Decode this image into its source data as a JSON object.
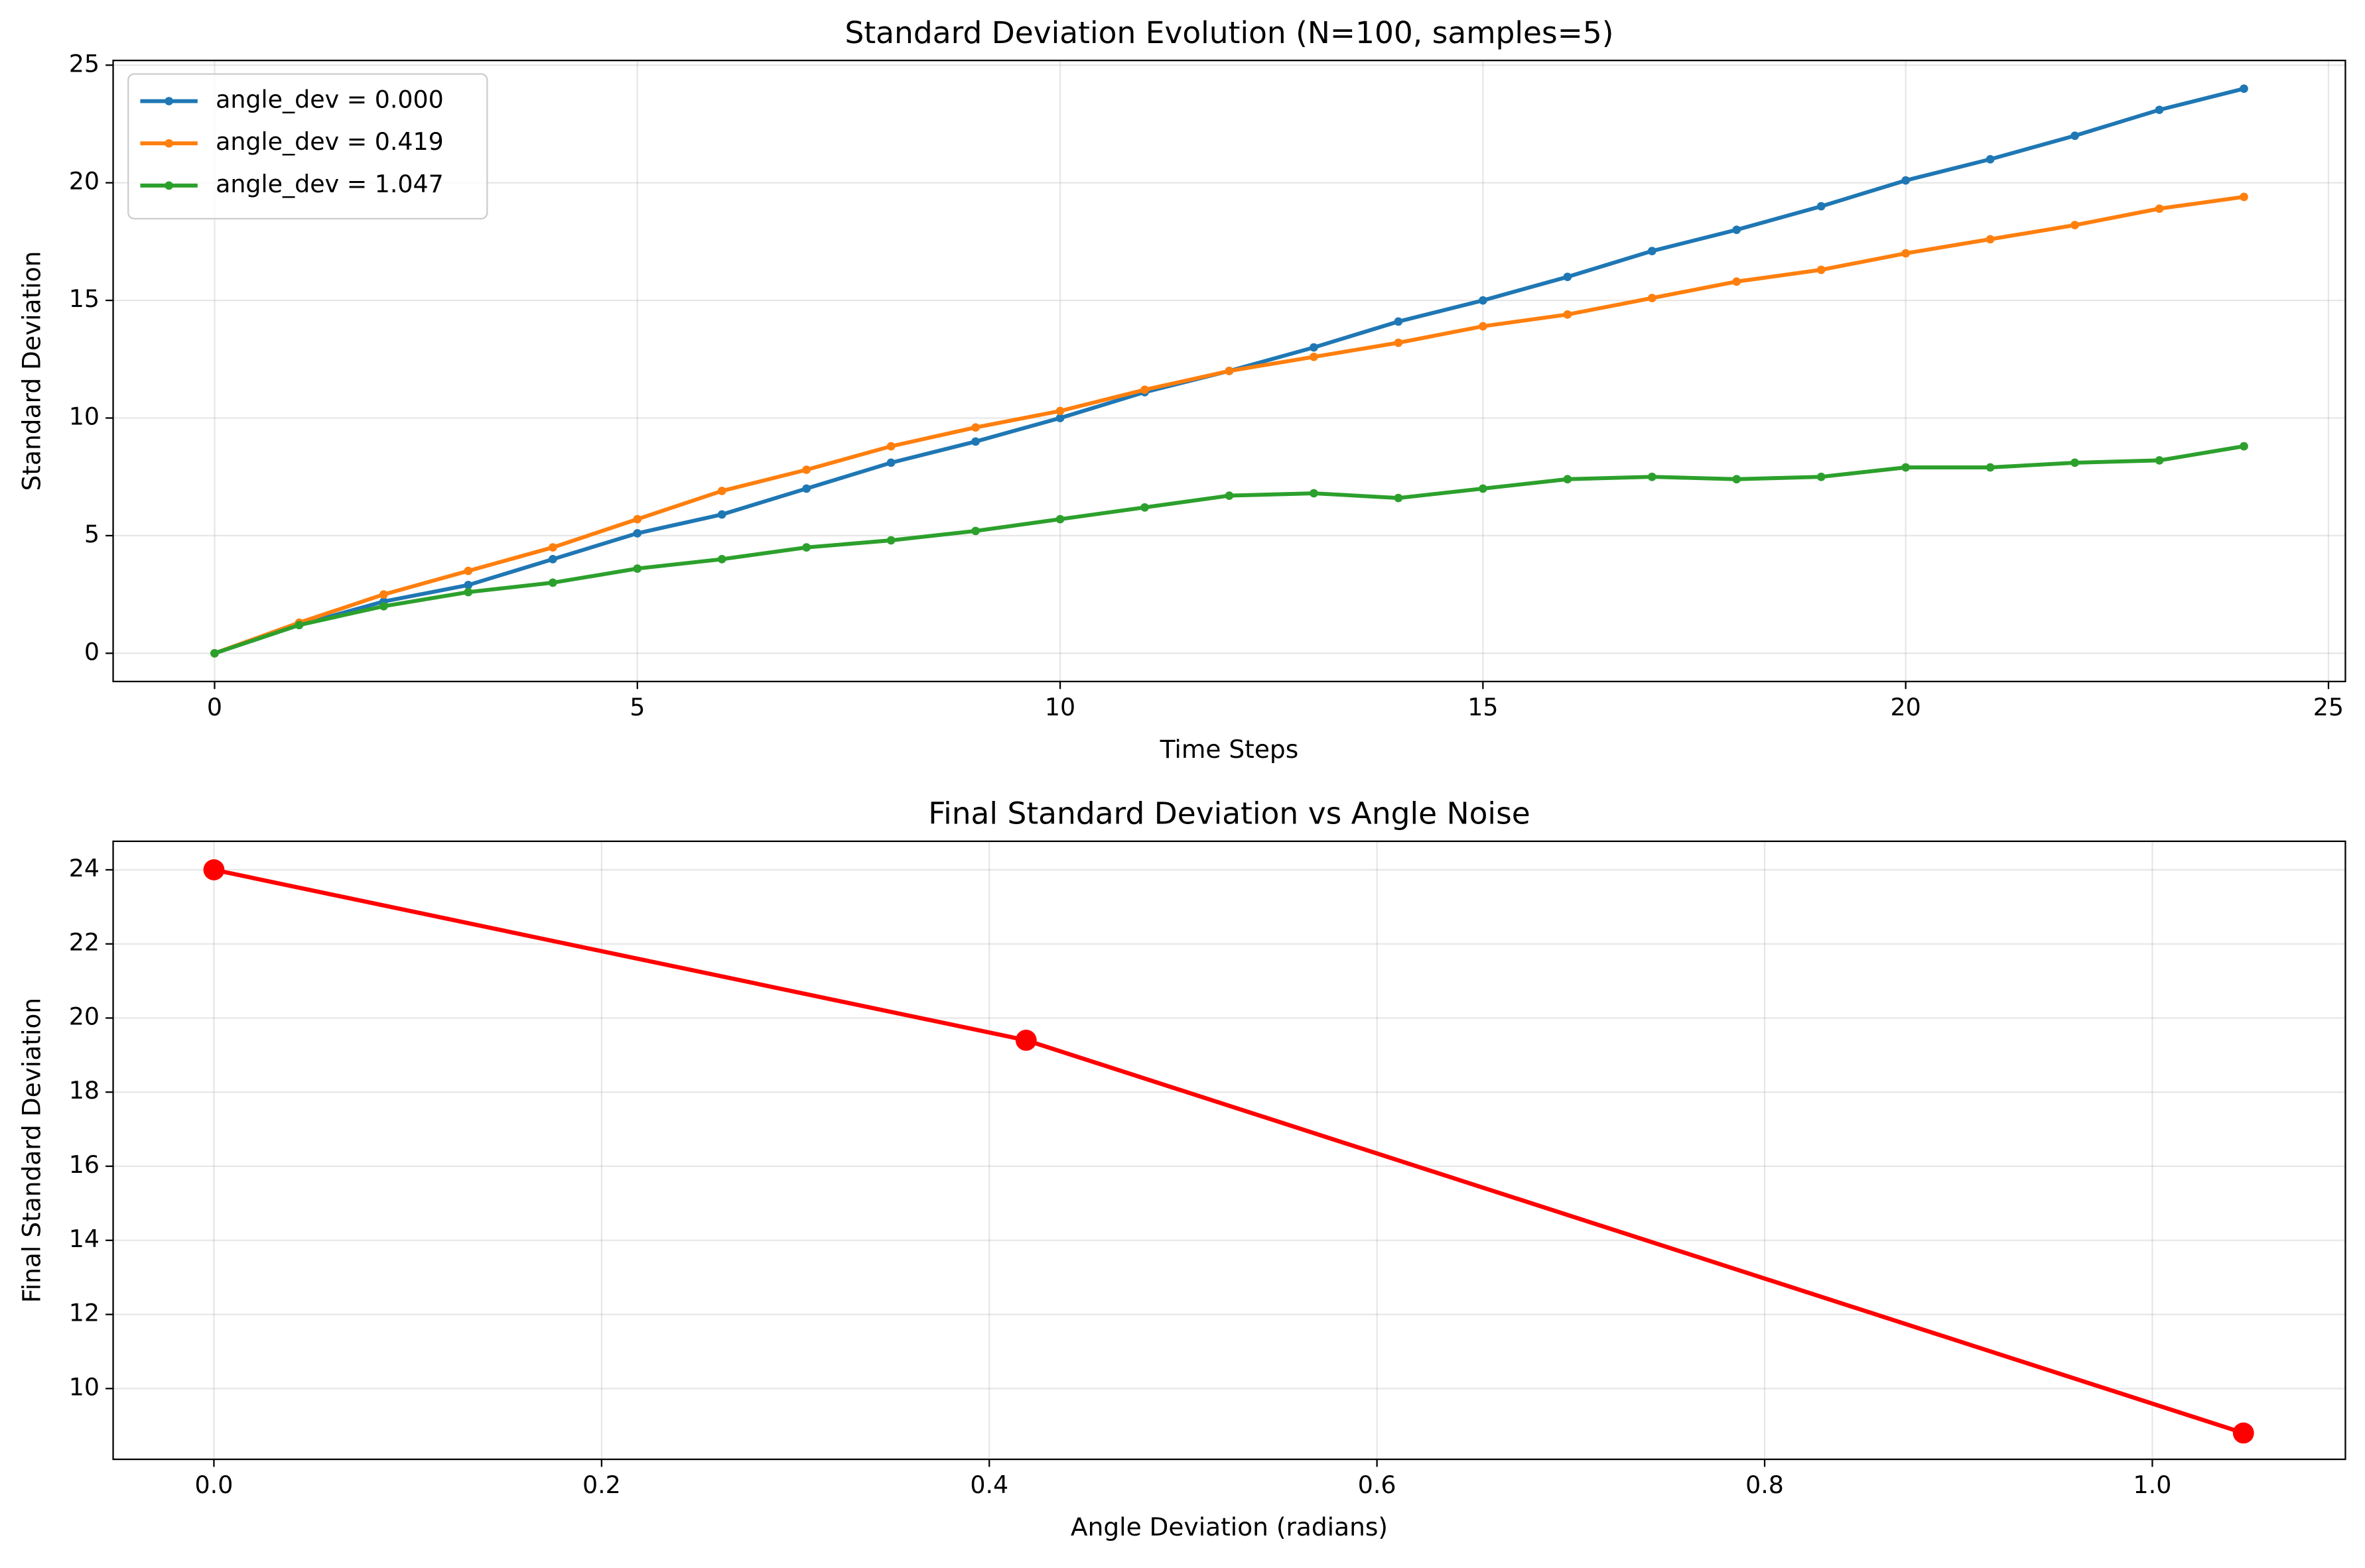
{
  "chart_data": [
    {
      "type": "line",
      "title": "Standard Deviation Evolution (N=100, samples=5)",
      "x_label": "Time Steps",
      "y_label": "Standard Deviation",
      "x": [
        0,
        1,
        2,
        3,
        4,
        5,
        6,
        7,
        8,
        9,
        10,
        11,
        12,
        13,
        14,
        15,
        16,
        17,
        18,
        19,
        20,
        21,
        22,
        23,
        24
      ],
      "series": [
        {
          "name": "angle_dev = 0.000",
          "color": "#1f77b4",
          "values": [
            0,
            1.2,
            2.2,
            2.9,
            4.0,
            5.1,
            5.9,
            7.0,
            8.1,
            9.0,
            10.0,
            11.1,
            12.0,
            13.0,
            14.1,
            15.0,
            16.0,
            17.1,
            18.0,
            19.0,
            20.1,
            21.0,
            22.0,
            23.1,
            24.0
          ]
        },
        {
          "name": "angle_dev = 0.419",
          "color": "#ff7f0e",
          "values": [
            0,
            1.3,
            2.5,
            3.5,
            4.5,
            5.7,
            6.9,
            7.8,
            8.8,
            9.6,
            10.3,
            11.2,
            12.0,
            12.6,
            13.2,
            13.9,
            14.4,
            15.1,
            15.8,
            16.3,
            17.0,
            17.6,
            18.2,
            18.9,
            19.4
          ]
        },
        {
          "name": "angle_dev = 1.047",
          "color": "#2ca02c",
          "values": [
            0,
            1.2,
            2.0,
            2.6,
            3.0,
            3.6,
            4.0,
            4.5,
            4.8,
            5.2,
            5.7,
            6.2,
            6.7,
            6.8,
            6.6,
            7.0,
            7.4,
            7.5,
            7.4,
            7.5,
            7.9,
            7.9,
            8.1,
            8.2,
            8.8
          ]
        }
      ],
      "xlim": [
        -1.2,
        25.2
      ],
      "xticks": [
        0,
        5,
        10,
        15,
        20,
        25
      ],
      "ylim": [
        -1.2,
        25.2
      ],
      "yticks": [
        0,
        5,
        10,
        15,
        20,
        25
      ],
      "grid": true,
      "legend": "upper left"
    },
    {
      "type": "line",
      "title": "Final Standard Deviation vs Angle Noise",
      "x_label": "Angle Deviation (radians)",
      "y_label": "Final Standard Deviation",
      "x": [
        0,
        0.419,
        1.047
      ],
      "series": [
        {
          "color": "#ff0000",
          "values": [
            24.0,
            19.4,
            8.8
          ]
        }
      ],
      "xlim": [
        -0.052,
        1.0996
      ],
      "xticks": [
        {
          "value": 0,
          "label": "0.0"
        },
        {
          "value": 0.2,
          "label": "0.2"
        },
        {
          "value": 0.4,
          "label": "0.4"
        },
        {
          "value": 0.6,
          "label": "0.6"
        },
        {
          "value": 0.8,
          "label": "0.8"
        },
        {
          "value": 1,
          "label": "1.0"
        }
      ],
      "ylim": [
        8.09,
        24.77
      ],
      "yticks": [
        10,
        12,
        14,
        16,
        18,
        20,
        22,
        24
      ],
      "grid": true
    }
  ]
}
